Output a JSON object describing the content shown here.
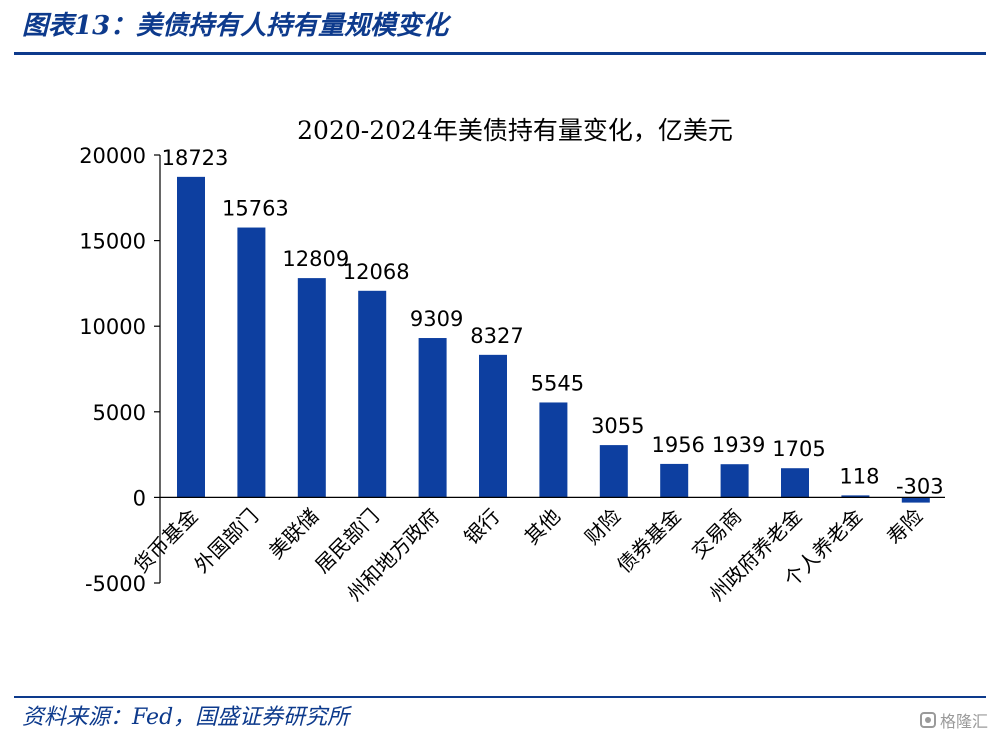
{
  "figure": {
    "header": "图表13：美债持有人持有量规模变化",
    "source": "资料来源：Fed，国盛证券研究所",
    "watermark": "格隆汇",
    "watermark_icon": "gelonghui-logo-icon"
  },
  "colors": {
    "bar": "#0d3fa0",
    "heading": "#0d3a8c",
    "axis": "#000000"
  },
  "chart_data": {
    "type": "bar",
    "title": "2020-2024年美债持有量变化，亿美元",
    "xlabel": "",
    "ylabel": "",
    "categories": [
      "货币基金",
      "外国部门",
      "美联储",
      "居民部门",
      "州和地方政府",
      "银行",
      "其他",
      "财险",
      "债券基金",
      "交易商",
      "州政府养老金",
      "个人养老金",
      "寿险"
    ],
    "values": [
      18723,
      15763,
      12809,
      12068,
      9309,
      8327,
      5545,
      3055,
      1956,
      1939,
      1705,
      118,
      -303
    ],
    "data_labels": [
      "18723",
      "15763",
      "12809",
      "12068",
      "9309",
      "8327",
      "5545",
      "3055",
      "1956",
      "1939",
      "1705",
      "118",
      "-303"
    ],
    "ylim": [
      -5000,
      20000
    ],
    "yticks": [
      -5000,
      0,
      5000,
      10000,
      15000,
      20000
    ],
    "ytick_labels": [
      "-5000",
      "0",
      "5000",
      "10000",
      "15000",
      "20000"
    ],
    "grid": false,
    "legend": "none"
  }
}
